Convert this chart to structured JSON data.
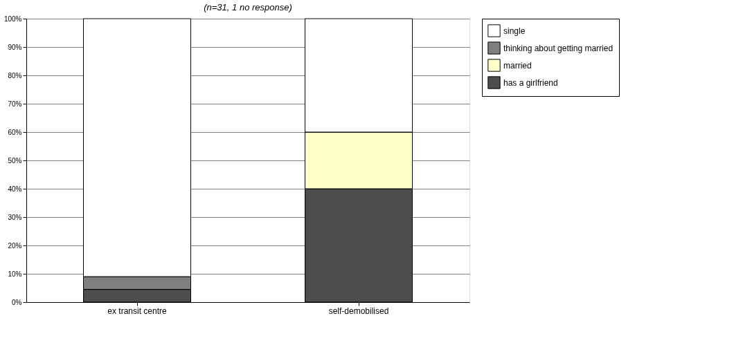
{
  "chart_data": {
    "type": "bar",
    "stacked": true,
    "title": "(n=31, 1 no response)",
    "categories": [
      "ex transit centre",
      "self-demobilised"
    ],
    "series": [
      {
        "name": "has a girlfriend",
        "color": "#4d4d4d",
        "values": [
          4.5,
          40
        ]
      },
      {
        "name": "married",
        "color": "#ffffcc",
        "values": [
          0,
          20
        ]
      },
      {
        "name": "thinking about getting married",
        "color": "#7f7f7f",
        "values": [
          4.5,
          0
        ]
      },
      {
        "name": "single",
        "color": "#ffffff",
        "values": [
          91,
          40
        ]
      }
    ],
    "ylim": [
      0,
      100
    ],
    "yticks": [
      {
        "value": 0,
        "label": "0%"
      },
      {
        "value": 10,
        "label": "10%"
      },
      {
        "value": 20,
        "label": "20%"
      },
      {
        "value": 30,
        "label": "30%"
      },
      {
        "value": 40,
        "label": "40%"
      },
      {
        "value": 50,
        "label": "50%"
      },
      {
        "value": 60,
        "label": "60%"
      },
      {
        "value": 70,
        "label": "70%"
      },
      {
        "value": 80,
        "label": "80%"
      },
      {
        "value": 90,
        "label": "90%"
      },
      {
        "value": 100,
        "label": "100%"
      }
    ],
    "grid": "y",
    "legend": "right"
  }
}
